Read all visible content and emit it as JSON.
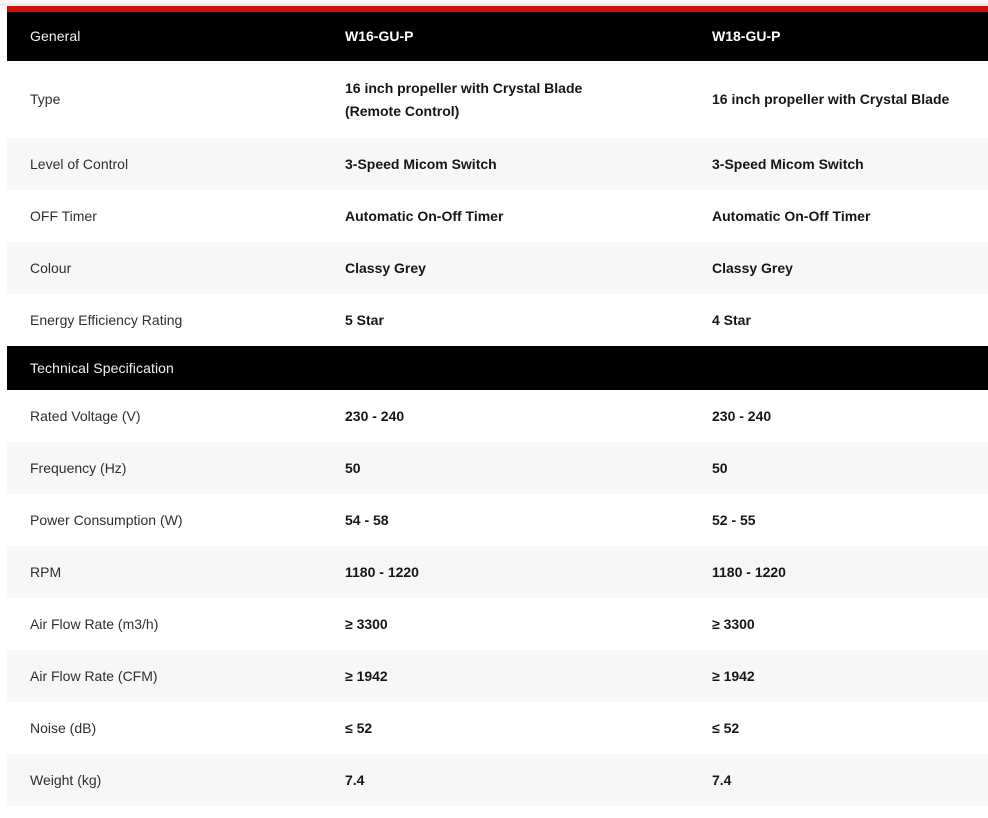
{
  "theme": {
    "accent_red": "#d11010",
    "header_bg": "#000000",
    "header_text": "#f2f2f2",
    "row_alt_bg": "#f7f7f7",
    "label_color": "#2f2f2f",
    "value_color": "#161616"
  },
  "table": {
    "sections": [
      {
        "title": "General",
        "col1_header": "W16-GU-P",
        "col2_header": "W18-GU-P",
        "rows": [
          {
            "label": "Type",
            "col1": [
              "16 inch propeller with Crystal Blade",
              "(Remote Control)"
            ],
            "col2": "16 inch propeller with Crystal Blade"
          },
          {
            "label": "Level of Control",
            "col1": "3-Speed Micom Switch",
            "col2": "3-Speed Micom Switch"
          },
          {
            "label": "OFF Timer",
            "col1": "Automatic On-Off Timer",
            "col2": "Automatic On-Off Timer"
          },
          {
            "label": "Colour",
            "col1": "Classy Grey",
            "col2": "Classy Grey"
          },
          {
            "label": "Energy Efficiency Rating",
            "col1": "5 Star",
            "col2": "4 Star"
          }
        ]
      },
      {
        "title": "Technical Specification",
        "col1_header": "",
        "col2_header": "",
        "rows": [
          {
            "label": "Rated Voltage (V)",
            "col1": "230 - 240",
            "col2": "230 - 240"
          },
          {
            "label": "Frequency (Hz)",
            "col1": "50",
            "col2": "50"
          },
          {
            "label": "Power Consumption (W)",
            "col1": "54 - 58",
            "col2": "52 - 55"
          },
          {
            "label": "RPM",
            "col1": "1180 - 1220",
            "col2": "1180 - 1220"
          },
          {
            "label": "Air Flow Rate (m3/h)",
            "col1": "≥ 3300",
            "col2": "≥ 3300"
          },
          {
            "label": "Air Flow Rate (CFM)",
            "col1": "≥ 1942",
            "col2": "≥ 1942"
          },
          {
            "label": "Noise (dB)",
            "col1": "≤ 52",
            "col2": "≤ 52"
          },
          {
            "label": "Weight (kg)",
            "col1": "7.4",
            "col2": "7.4"
          }
        ]
      }
    ]
  }
}
